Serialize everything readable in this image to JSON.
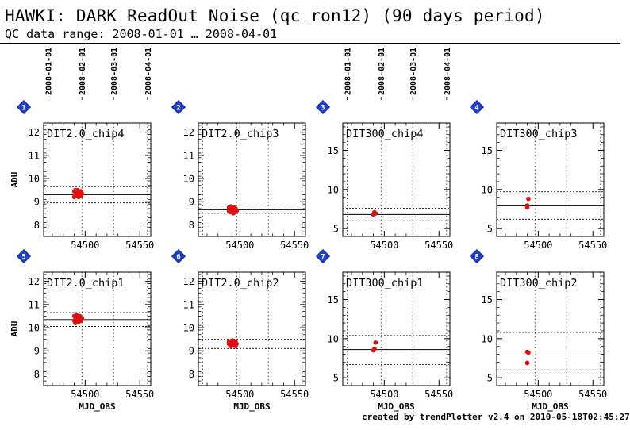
{
  "title": "HAWKI: DARK ReadOut Noise (qc_ron12) (90 days period)",
  "subtitle": "QC data range: 2008-01-01 … 2008-04-01",
  "credit": "created by trendPlotter v2.4 on 2010-05-18T02:45:27",
  "colors": {
    "points": "#e01010",
    "badge": "#1d3fd6",
    "axis": "#000000",
    "reference": "#000000"
  },
  "chart_data": [
    {
      "type": "scatter",
      "badge": "1",
      "label": "DIT2.0_chip4",
      "ylabel": "ADU",
      "xlabel": "",
      "date_ticks": [
        "2008-01-01",
        "2008-02-01",
        "2008-03-01",
        "2008-04-01"
      ],
      "x_ticks": [
        54500,
        54550
      ],
      "y_ticks": [
        8,
        9,
        10,
        11,
        12
      ],
      "ylim": [
        7.5,
        12.4
      ],
      "xlim": [
        54462,
        54560
      ],
      "median": 9.3,
      "band": [
        8.95,
        9.65
      ],
      "points": [
        [
          54490,
          9.2
        ],
        [
          54490,
          9.45
        ],
        [
          54491,
          9.3
        ],
        [
          54491,
          9.5
        ],
        [
          54492,
          9.25
        ],
        [
          54492,
          9.4
        ],
        [
          54493,
          9.35
        ],
        [
          54493,
          9.5
        ],
        [
          54494,
          9.3
        ],
        [
          54494,
          9.2
        ],
        [
          54495,
          9.4
        ],
        [
          54495,
          9.3
        ],
        [
          54496,
          9.45
        ],
        [
          54496,
          9.25
        ],
        [
          54497,
          9.35
        ]
      ]
    },
    {
      "type": "scatter",
      "badge": "2",
      "label": "DIT2.0_chip3",
      "ylabel": "",
      "xlabel": "",
      "date_ticks": [],
      "x_ticks": [
        54500,
        54550
      ],
      "y_ticks": [
        8,
        9,
        10,
        11,
        12
      ],
      "ylim": [
        7.5,
        12.4
      ],
      "xlim": [
        54462,
        54560
      ],
      "median": 8.65,
      "band": [
        8.5,
        8.85
      ],
      "points": [
        [
          54490,
          8.6
        ],
        [
          54490,
          8.75
        ],
        [
          54491,
          8.7
        ],
        [
          54491,
          8.55
        ],
        [
          54492,
          8.65
        ],
        [
          54492,
          8.8
        ],
        [
          54493,
          8.6
        ],
        [
          54493,
          8.7
        ],
        [
          54494,
          8.5
        ],
        [
          54494,
          8.65
        ],
        [
          54495,
          8.75
        ],
        [
          54495,
          8.6
        ],
        [
          54496,
          8.55
        ],
        [
          54496,
          8.7
        ],
        [
          54497,
          8.6
        ]
      ]
    },
    {
      "type": "scatter",
      "badge": "3",
      "label": "DIT300_chip4",
      "ylabel": "",
      "xlabel": "",
      "date_ticks": [
        "2008-01-01",
        "2008-02-01",
        "2008-03-01",
        "2008-04-01"
      ],
      "x_ticks": [
        54500,
        54550
      ],
      "y_ticks": [
        5,
        10,
        15
      ],
      "ylim": [
        4,
        18.5
      ],
      "xlim": [
        54462,
        54560
      ],
      "median": 6.8,
      "band": [
        6.0,
        7.6
      ],
      "points": [
        [
          54490,
          6.8
        ],
        [
          54491,
          7.1
        ],
        [
          54492,
          6.95
        ]
      ]
    },
    {
      "type": "scatter",
      "badge": "4",
      "label": "DIT300_chip3",
      "ylabel": "",
      "xlabel": "",
      "date_ticks": [],
      "x_ticks": [
        54500,
        54550
      ],
      "y_ticks": [
        5,
        10,
        15
      ],
      "ylim": [
        4,
        18.5
      ],
      "xlim": [
        54462,
        54560
      ],
      "median": 7.9,
      "band": [
        6.2,
        9.7
      ],
      "points": [
        [
          54490,
          7.7
        ],
        [
          54490,
          7.95
        ],
        [
          54491,
          8.8
        ]
      ]
    },
    {
      "type": "scatter",
      "badge": "5",
      "label": "DIT2.0_chip1",
      "ylabel": "ADU",
      "xlabel": "MJD_OBS",
      "date_ticks": [],
      "x_ticks": [
        54500,
        54550
      ],
      "y_ticks": [
        8,
        9,
        10,
        11,
        12
      ],
      "ylim": [
        7.5,
        12.4
      ],
      "xlim": [
        54462,
        54560
      ],
      "median": 10.35,
      "band": [
        10.05,
        10.65
      ],
      "points": [
        [
          54490,
          10.5
        ],
        [
          54490,
          10.3
        ],
        [
          54491,
          10.45
        ],
        [
          54491,
          10.2
        ],
        [
          54492,
          10.35
        ],
        [
          54492,
          10.55
        ],
        [
          54493,
          10.3
        ],
        [
          54493,
          10.45
        ],
        [
          54494,
          10.25
        ],
        [
          54494,
          10.4
        ],
        [
          54495,
          10.35
        ],
        [
          54495,
          10.5
        ],
        [
          54496,
          10.3
        ],
        [
          54497,
          10.4
        ]
      ]
    },
    {
      "type": "scatter",
      "badge": "6",
      "label": "DIT2.0_chip2",
      "ylabel": "",
      "xlabel": "MJD_OBS",
      "date_ticks": [],
      "x_ticks": [
        54500,
        54550
      ],
      "y_ticks": [
        8,
        9,
        10,
        11,
        12
      ],
      "ylim": [
        7.5,
        12.4
      ],
      "xlim": [
        54462,
        54560
      ],
      "median": 9.3,
      "band": [
        9.1,
        9.5
      ],
      "points": [
        [
          54490,
          9.3
        ],
        [
          54490,
          9.4
        ],
        [
          54491,
          9.25
        ],
        [
          54491,
          9.35
        ],
        [
          54492,
          9.4
        ],
        [
          54492,
          9.2
        ],
        [
          54493,
          9.3
        ],
        [
          54493,
          9.45
        ],
        [
          54494,
          9.25
        ],
        [
          54494,
          9.35
        ],
        [
          54495,
          9.3
        ],
        [
          54496,
          9.4
        ],
        [
          54496,
          9.2
        ],
        [
          54497,
          9.3
        ]
      ]
    },
    {
      "type": "scatter",
      "badge": "7",
      "label": "DIT300_chip1",
      "ylabel": "",
      "xlabel": "MJD_OBS",
      "date_ticks": [],
      "x_ticks": [
        54500,
        54550
      ],
      "y_ticks": [
        5,
        10,
        15
      ],
      "ylim": [
        4,
        18.5
      ],
      "xlim": [
        54462,
        54560
      ],
      "median": 8.6,
      "band": [
        6.7,
        10.4
      ],
      "points": [
        [
          54490,
          8.5
        ],
        [
          54491,
          8.7
        ],
        [
          54492,
          9.5
        ]
      ]
    },
    {
      "type": "scatter",
      "badge": "8",
      "label": "DIT300_chip2",
      "ylabel": "",
      "xlabel": "MJD_OBS",
      "date_ticks": [],
      "x_ticks": [
        54500,
        54550
      ],
      "y_ticks": [
        5,
        10,
        15
      ],
      "ylim": [
        4,
        18.5
      ],
      "xlim": [
        54462,
        54560
      ],
      "median": 8.4,
      "band": [
        6.0,
        10.8
      ],
      "points": [
        [
          54490,
          8.3
        ],
        [
          54491,
          8.2
        ],
        [
          54490,
          6.9
        ]
      ]
    }
  ]
}
